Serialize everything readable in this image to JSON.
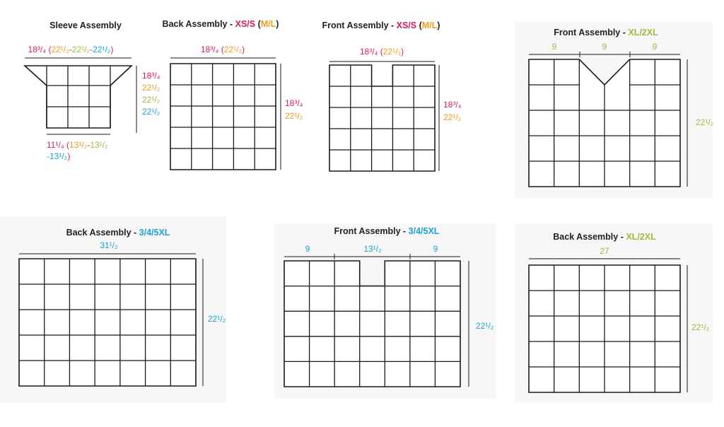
{
  "colors": {
    "title": "#222222",
    "pink": "#d81b60",
    "orange": "#f29a1a",
    "green": "#9bbb3a",
    "cyan": "#1aa3d4",
    "line": "#1a1a1a",
    "panel_bg": "#f7f7f7"
  },
  "diagrams": {
    "sleeve": {
      "title": "Sleeve Assembly",
      "width_parts": [
        {
          "text": "18³/₄ (",
          "color": "pink"
        },
        {
          "text": "22¹/₂",
          "color": "orange"
        },
        {
          "text": "-",
          "color": "pink"
        },
        {
          "text": "22¹/₂",
          "color": "green"
        },
        {
          "text": "-",
          "color": "pink"
        },
        {
          "text": "22¹/₂",
          "color": "cyan"
        },
        {
          "text": ")",
          "color": "pink"
        }
      ],
      "height_values": [
        {
          "text": "18³/₄",
          "color": "pink"
        },
        {
          "text": "22¹/₂",
          "color": "orange"
        },
        {
          "text": "22¹/₂",
          "color": "green"
        },
        {
          "text": "22¹/₂",
          "color": "cyan"
        }
      ],
      "bottom_line1": [
        {
          "text": "11¹/₄ (",
          "color": "pink"
        },
        {
          "text": "13¹/₂",
          "color": "orange"
        },
        {
          "text": "-",
          "color": "pink"
        },
        {
          "text": "13¹/₂",
          "color": "green"
        }
      ],
      "bottom_line2": [
        {
          "text": "-13¹/₂",
          "color": "cyan"
        },
        {
          "text": ")",
          "color": "pink"
        }
      ]
    },
    "back_xs_s": {
      "title": "Back Assembly - ",
      "size_primary": "XS/S",
      "size_secondary": "M/L",
      "width_parts": [
        {
          "text": "18³/₄ (",
          "color": "pink"
        },
        {
          "text": "22¹/₂",
          "color": "orange"
        },
        {
          "text": ")",
          "color": "pink"
        }
      ],
      "height_values": [
        {
          "text": "18³/₄",
          "color": "pink"
        },
        {
          "text": "22¹/₂",
          "color": "orange"
        }
      ]
    },
    "front_xs_s": {
      "title": "Front Assembly - ",
      "size_primary": "XS/S",
      "size_secondary": "M/L",
      "width_parts": [
        {
          "text": "18³/₄ (",
          "color": "pink"
        },
        {
          "text": "22¹/₂",
          "color": "orange"
        },
        {
          "text": ")",
          "color": "pink"
        }
      ],
      "height_values": [
        {
          "text": "18³/₄",
          "color": "pink"
        },
        {
          "text": "22¹/₂",
          "color": "orange"
        }
      ]
    },
    "front_xl": {
      "title": "Front Assembly - ",
      "size": "XL/2XL",
      "segments": [
        "9",
        "9",
        "9"
      ],
      "height": "22¹/₂"
    },
    "back_3_5xl": {
      "title": "Back Assembly - ",
      "size": "3/4/5XL",
      "width": "31¹/₂",
      "height": "22¹/₂"
    },
    "front_3_5xl": {
      "title": "Front Assembly - ",
      "size": "3/4/5XL",
      "segments": [
        "9",
        "13¹/₂",
        "9"
      ],
      "height": "22¹/₂"
    },
    "back_xl": {
      "title": "Back Assembly - ",
      "size": "XL/2XL",
      "width": "27",
      "height": "22¹/₂"
    }
  }
}
